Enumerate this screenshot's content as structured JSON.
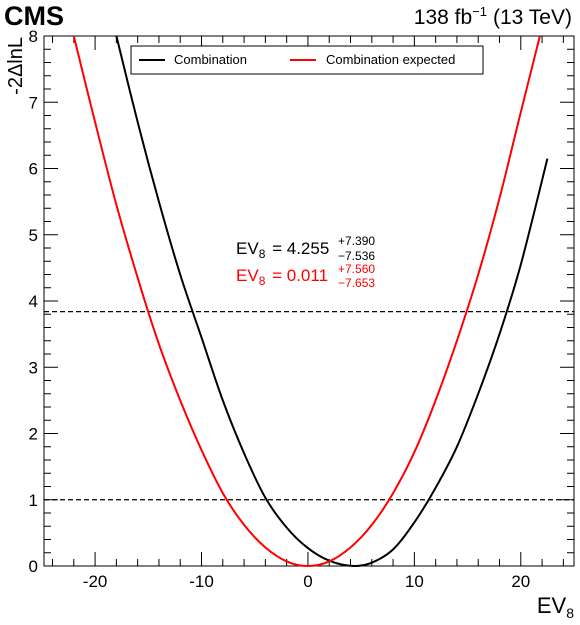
{
  "experiment": "CMS",
  "lumi": {
    "value": "138 fb",
    "exponent": "−1",
    "energy": "(13 TeV)"
  },
  "results": {
    "observed": {
      "param": "EV",
      "param_sub": "8",
      "central": "4.255",
      "up": "+7.390",
      "down": "−7.536"
    },
    "expected": {
      "param": "EV",
      "param_sub": "8",
      "central": "0.011",
      "up": "+7.560",
      "down": "−7.653"
    }
  },
  "chart_data": {
    "type": "line",
    "title": "",
    "xlabel": "EV",
    "xlabel_sub": "8",
    "ylabel": "-2ΔlnL",
    "xlim": [
      -24.8,
      25
    ],
    "ylim": [
      0,
      8
    ],
    "x_ticks": [
      -20,
      -10,
      0,
      10,
      20
    ],
    "y_ticks": [
      0,
      1,
      2,
      3,
      4,
      5,
      6,
      7,
      8
    ],
    "legend_position": "top",
    "reference_lines": [
      1.0,
      3.84
    ],
    "series": [
      {
        "name": "Combination",
        "color": "#000000",
        "points": [
          [
            -18.0,
            8.0
          ],
          [
            -16.0,
            6.7
          ],
          [
            -14.0,
            5.5
          ],
          [
            -12.0,
            4.4
          ],
          [
            -10.0,
            3.45
          ],
          [
            -8.0,
            2.5
          ],
          [
            -6.0,
            1.7
          ],
          [
            -4.0,
            1.03
          ],
          [
            -2.0,
            0.58
          ],
          [
            0.0,
            0.27
          ],
          [
            2.0,
            0.08
          ],
          [
            4.255,
            0.0
          ],
          [
            6.0,
            0.05
          ],
          [
            8.0,
            0.25
          ],
          [
            10.0,
            0.66
          ],
          [
            12.0,
            1.18
          ],
          [
            14.0,
            1.8
          ],
          [
            16.0,
            2.6
          ],
          [
            18.0,
            3.5
          ],
          [
            20.0,
            4.55
          ],
          [
            22.5,
            6.15
          ]
        ]
      },
      {
        "name": "Combination expected",
        "color": "#ff0000",
        "points": [
          [
            -22.0,
            8.0
          ],
          [
            -20.0,
            6.7
          ],
          [
            -18.0,
            5.45
          ],
          [
            -16.0,
            4.35
          ],
          [
            -14.0,
            3.35
          ],
          [
            -12.0,
            2.5
          ],
          [
            -10.0,
            1.75
          ],
          [
            -8.0,
            1.1
          ],
          [
            -6.0,
            0.62
          ],
          [
            -4.0,
            0.28
          ],
          [
            -2.0,
            0.07
          ],
          [
            0.0,
            0.0
          ],
          [
            2.0,
            0.07
          ],
          [
            4.0,
            0.28
          ],
          [
            6.0,
            0.62
          ],
          [
            8.0,
            1.1
          ],
          [
            10.0,
            1.72
          ],
          [
            12.0,
            2.5
          ],
          [
            14.0,
            3.4
          ],
          [
            16.0,
            4.4
          ],
          [
            18.0,
            5.55
          ],
          [
            20.0,
            6.85
          ],
          [
            21.8,
            8.0
          ]
        ]
      }
    ]
  }
}
